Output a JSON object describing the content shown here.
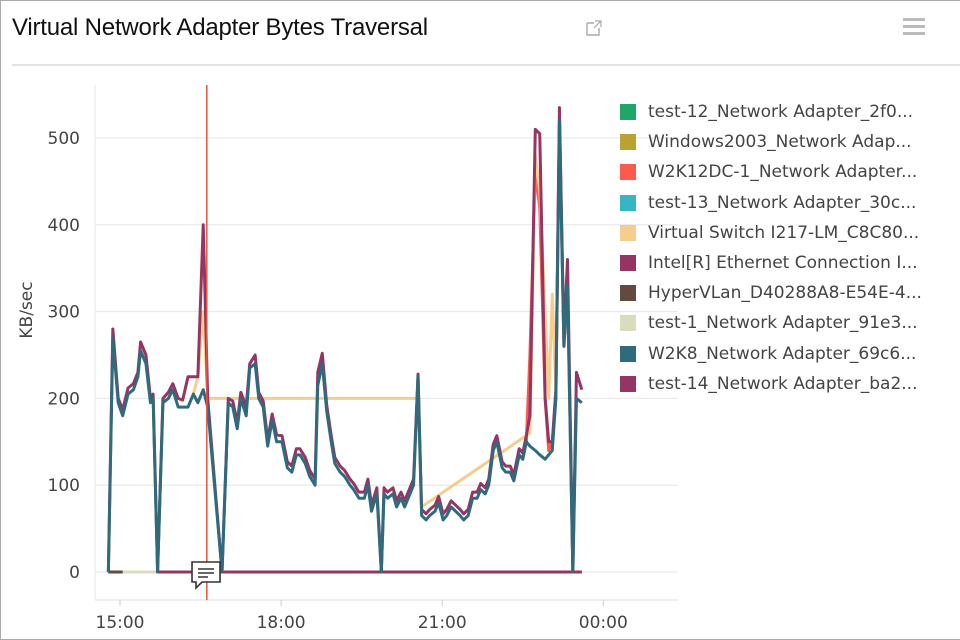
{
  "header": {
    "title": "Virtual Network Adapter Bytes Traversal",
    "popout_icon": "external-link-icon",
    "menu_icon": "hamburger-menu-icon"
  },
  "chart_data": {
    "type": "line",
    "title": "Virtual Network Adapter Bytes Traversal",
    "ylabel": "KB/sec",
    "xlabel": "",
    "ylim": [
      0,
      560
    ],
    "yticks": [
      0,
      100,
      200,
      300,
      400,
      500
    ],
    "xticks": [
      "15:00",
      "18:00",
      "21:00",
      "00:00"
    ],
    "grid": true,
    "legend": "right",
    "crosshair_time": "16:37",
    "annotation_icon": "comment-icon",
    "annotation_time": "16:35",
    "series": [
      {
        "name": "test-12_Network Adapter_2f0...",
        "color": "#1fa66a",
        "points": [
          [
            "14:47",
            0
          ],
          [
            "23:36",
            0
          ]
        ]
      },
      {
        "name": "Windows2003_Network Adap...",
        "color": "#b9a232",
        "points": [
          [
            "14:47",
            0
          ],
          [
            "23:36",
            0
          ]
        ]
      },
      {
        "name": "W2K12DC-1_Network Adapter...",
        "color": "#fc5a4f",
        "points": [
          [
            "22:20",
            105
          ],
          [
            "22:26",
            135
          ],
          [
            "22:30",
            130
          ],
          [
            "22:34",
            150
          ],
          [
            "22:38",
            250
          ],
          [
            "22:44",
            460
          ],
          [
            "22:49",
            420
          ],
          [
            "22:55",
            200
          ],
          [
            "22:59",
            140
          ],
          [
            "23:03",
            150
          ],
          [
            "23:07",
            200
          ],
          [
            "23:11",
            520
          ],
          [
            "23:16",
            260
          ],
          [
            "23:20",
            330
          ],
          [
            "23:26",
            0
          ]
        ]
      },
      {
        "name": "test-13_Network Adapter_30c...",
        "color": "#36b5c6",
        "points": [
          [
            "14:47",
            0
          ],
          [
            "23:36",
            0
          ]
        ]
      },
      {
        "name": "Virtual Switch I217-LM_C8C80...",
        "color": "#f7cd8e",
        "points": [
          [
            "16:22",
            205
          ],
          [
            "16:27",
            225
          ],
          [
            "16:33",
            300
          ],
          [
            "16:38",
            200
          ],
          [
            "20:33",
            200
          ],
          [
            "20:37",
            75
          ],
          [
            "22:38",
            160
          ],
          [
            "22:44",
            480
          ],
          [
            "22:49",
            440
          ],
          [
            "22:55",
            300
          ],
          [
            "22:59",
            200
          ],
          [
            "23:03",
            320
          ],
          [
            "23:07",
            210
          ],
          [
            "23:11",
            520
          ],
          [
            "23:16",
            260
          ],
          [
            "23:20",
            330
          ],
          [
            "23:26",
            0
          ]
        ]
      },
      {
        "name": "Intel[R] Ethernet Connection I...",
        "color": "#943563",
        "points": [
          [
            "14:47",
            0
          ],
          [
            "14:52",
            280
          ],
          [
            "14:58",
            200
          ],
          [
            "15:03",
            187
          ],
          [
            "15:09",
            212
          ],
          [
            "15:15",
            217
          ],
          [
            "15:20",
            230
          ],
          [
            "15:23",
            265
          ],
          [
            "15:29",
            250
          ],
          [
            "15:34",
            200
          ],
          [
            "15:37",
            205
          ],
          [
            "15:42",
            0
          ],
          [
            "15:48",
            200
          ],
          [
            "15:54",
            207
          ],
          [
            "15:59",
            217
          ],
          [
            "16:05",
            200
          ],
          [
            "16:10",
            198
          ],
          [
            "16:16",
            225
          ],
          [
            "16:22",
            225
          ],
          [
            "16:27",
            225
          ],
          [
            "16:33",
            400
          ],
          [
            "16:38",
            200
          ],
          [
            "16:54",
            0
          ],
          [
            "17:01",
            200
          ],
          [
            "17:06",
            197
          ],
          [
            "17:11",
            172
          ],
          [
            "17:15",
            207
          ],
          [
            "17:21",
            190
          ],
          [
            "17:25",
            240
          ],
          [
            "17:31",
            250
          ],
          [
            "17:35",
            207
          ],
          [
            "17:40",
            197
          ],
          [
            "17:45",
            152
          ],
          [
            "17:50",
            182
          ],
          [
            "17:55",
            158
          ],
          [
            "18:01",
            157
          ],
          [
            "18:07",
            127
          ],
          [
            "18:12",
            122
          ],
          [
            "18:17",
            142
          ],
          [
            "18:21",
            142
          ],
          [
            "18:27",
            132
          ],
          [
            "18:32",
            117
          ],
          [
            "18:38",
            107
          ],
          [
            "18:41",
            230
          ],
          [
            "18:46",
            252
          ],
          [
            "18:51",
            192
          ],
          [
            "18:56",
            157
          ],
          [
            "19:00",
            132
          ],
          [
            "19:06",
            122
          ],
          [
            "19:11",
            117
          ],
          [
            "19:17",
            107
          ],
          [
            "19:21",
            102
          ],
          [
            "19:27",
            92
          ],
          [
            "19:33",
            92
          ],
          [
            "19:37",
            107
          ],
          [
            "19:41",
            77
          ],
          [
            "19:47",
            97
          ],
          [
            "19:52",
            0
          ],
          [
            "19:55",
            97
          ],
          [
            "19:59",
            92
          ],
          [
            "20:05",
            97
          ],
          [
            "20:09",
            82
          ],
          [
            "20:14",
            92
          ],
          [
            "20:18",
            82
          ],
          [
            "20:24",
            97
          ],
          [
            "20:28",
            107
          ],
          [
            "20:33",
            228
          ],
          [
            "20:37",
            72
          ],
          [
            "20:42",
            67
          ],
          [
            "20:46",
            72
          ],
          [
            "20:52",
            77
          ],
          [
            "20:56",
            87
          ],
          [
            "21:01",
            67
          ],
          [
            "21:05",
            72
          ],
          [
            "21:10",
            82
          ],
          [
            "21:15",
            77
          ],
          [
            "21:20",
            72
          ],
          [
            "21:24",
            67
          ],
          [
            "21:29",
            72
          ],
          [
            "21:34",
            92
          ],
          [
            "21:39",
            92
          ],
          [
            "21:43",
            102
          ],
          [
            "21:48",
            97
          ],
          [
            "21:52",
            107
          ],
          [
            "21:57",
            147
          ],
          [
            "22:01",
            157
          ],
          [
            "22:07",
            127
          ],
          [
            "22:11",
            122
          ],
          [
            "22:16",
            122
          ],
          [
            "22:20",
            112
          ],
          [
            "22:26",
            142
          ],
          [
            "22:30",
            137
          ],
          [
            "22:34",
            157
          ],
          [
            "22:38",
            180
          ],
          [
            "22:44",
            510
          ],
          [
            "22:49",
            505
          ],
          [
            "22:55",
            200
          ],
          [
            "22:59",
            150
          ],
          [
            "23:03",
            150
          ],
          [
            "23:07",
            210
          ],
          [
            "23:11",
            535
          ],
          [
            "23:16",
            265
          ],
          [
            "23:20",
            360
          ],
          [
            "23:26",
            0
          ],
          [
            "23:30",
            230
          ],
          [
            "23:36",
            210
          ]
        ]
      },
      {
        "name": "HyperVLan_D40288A8-E54E-4...",
        "color": "#634a3f",
        "points": [
          [
            "14:47",
            0
          ],
          [
            "15:03",
            0
          ]
        ]
      },
      {
        "name": "test-1_Network Adapter_91e3...",
        "color": "#d9dcbd",
        "points": [
          [
            "14:47",
            0
          ],
          [
            "23:36",
            0
          ]
        ]
      },
      {
        "name": "W2K8_Network Adapter_69c6...",
        "color": "#2f6a7d",
        "points": [
          [
            "14:47",
            0
          ],
          [
            "14:52",
            270
          ],
          [
            "14:58",
            195
          ],
          [
            "15:03",
            180
          ],
          [
            "15:09",
            205
          ],
          [
            "15:15",
            210
          ],
          [
            "15:20",
            225
          ],
          [
            "15:23",
            255
          ],
          [
            "15:29",
            240
          ],
          [
            "15:34",
            195
          ],
          [
            "15:37",
            200
          ],
          [
            "15:42",
            0
          ],
          [
            "15:48",
            195
          ],
          [
            "15:54",
            200
          ],
          [
            "15:59",
            210
          ],
          [
            "16:05",
            190
          ],
          [
            "16:10",
            190
          ],
          [
            "16:16",
            190
          ],
          [
            "16:22",
            205
          ],
          [
            "16:27",
            195
          ],
          [
            "16:33",
            210
          ],
          [
            "16:38",
            190
          ],
          [
            "16:54",
            0
          ],
          [
            "17:01",
            195
          ],
          [
            "17:06",
            190
          ],
          [
            "17:11",
            165
          ],
          [
            "17:15",
            200
          ],
          [
            "17:21",
            180
          ],
          [
            "17:25",
            235
          ],
          [
            "17:31",
            240
          ],
          [
            "17:35",
            200
          ],
          [
            "17:40",
            190
          ],
          [
            "17:45",
            145
          ],
          [
            "17:50",
            175
          ],
          [
            "17:55",
            150
          ],
          [
            "18:01",
            150
          ],
          [
            "18:07",
            120
          ],
          [
            "18:12",
            115
          ],
          [
            "18:17",
            135
          ],
          [
            "18:21",
            135
          ],
          [
            "18:27",
            125
          ],
          [
            "18:32",
            110
          ],
          [
            "18:38",
            100
          ],
          [
            "18:41",
            215
          ],
          [
            "18:46",
            240
          ],
          [
            "18:51",
            185
          ],
          [
            "18:56",
            150
          ],
          [
            "19:00",
            125
          ],
          [
            "19:06",
            115
          ],
          [
            "19:11",
            110
          ],
          [
            "19:17",
            100
          ],
          [
            "19:21",
            95
          ],
          [
            "19:27",
            85
          ],
          [
            "19:33",
            85
          ],
          [
            "19:37",
            100
          ],
          [
            "19:41",
            70
          ],
          [
            "19:47",
            90
          ],
          [
            "19:52",
            0
          ],
          [
            "19:55",
            90
          ],
          [
            "19:59",
            85
          ],
          [
            "20:05",
            90
          ],
          [
            "20:09",
            75
          ],
          [
            "20:14",
            85
          ],
          [
            "20:18",
            75
          ],
          [
            "20:24",
            90
          ],
          [
            "20:28",
            100
          ],
          [
            "20:33",
            225
          ],
          [
            "20:37",
            65
          ],
          [
            "20:42",
            60
          ],
          [
            "20:46",
            65
          ],
          [
            "20:52",
            70
          ],
          [
            "20:56",
            80
          ],
          [
            "21:01",
            60
          ],
          [
            "21:05",
            65
          ],
          [
            "21:10",
            75
          ],
          [
            "21:15",
            70
          ],
          [
            "21:20",
            65
          ],
          [
            "21:24",
            60
          ],
          [
            "21:29",
            65
          ],
          [
            "21:34",
            85
          ],
          [
            "21:39",
            85
          ],
          [
            "21:43",
            95
          ],
          [
            "21:48",
            90
          ],
          [
            "21:52",
            100
          ],
          [
            "21:57",
            140
          ],
          [
            "22:01",
            150
          ],
          [
            "22:07",
            120
          ],
          [
            "22:11",
            115
          ],
          [
            "22:16",
            115
          ],
          [
            "22:20",
            105
          ],
          [
            "22:26",
            135
          ],
          [
            "22:30",
            130
          ],
          [
            "22:34",
            150
          ],
          [
            "22:38",
            145
          ],
          [
            "22:44",
            140
          ],
          [
            "22:49",
            135
          ],
          [
            "22:55",
            130
          ],
          [
            "22:59",
            135
          ],
          [
            "23:03",
            140
          ],
          [
            "23:07",
            200
          ],
          [
            "23:11",
            520
          ],
          [
            "23:16",
            260
          ],
          [
            "23:20",
            330
          ],
          [
            "23:26",
            0
          ],
          [
            "23:30",
            200
          ],
          [
            "23:36",
            195
          ]
        ]
      },
      {
        "name": "test-14_Network Adapter_ba2...",
        "color": "#943563",
        "points": [
          [
            "15:42",
            0
          ],
          [
            "23:36",
            0
          ]
        ]
      }
    ]
  }
}
